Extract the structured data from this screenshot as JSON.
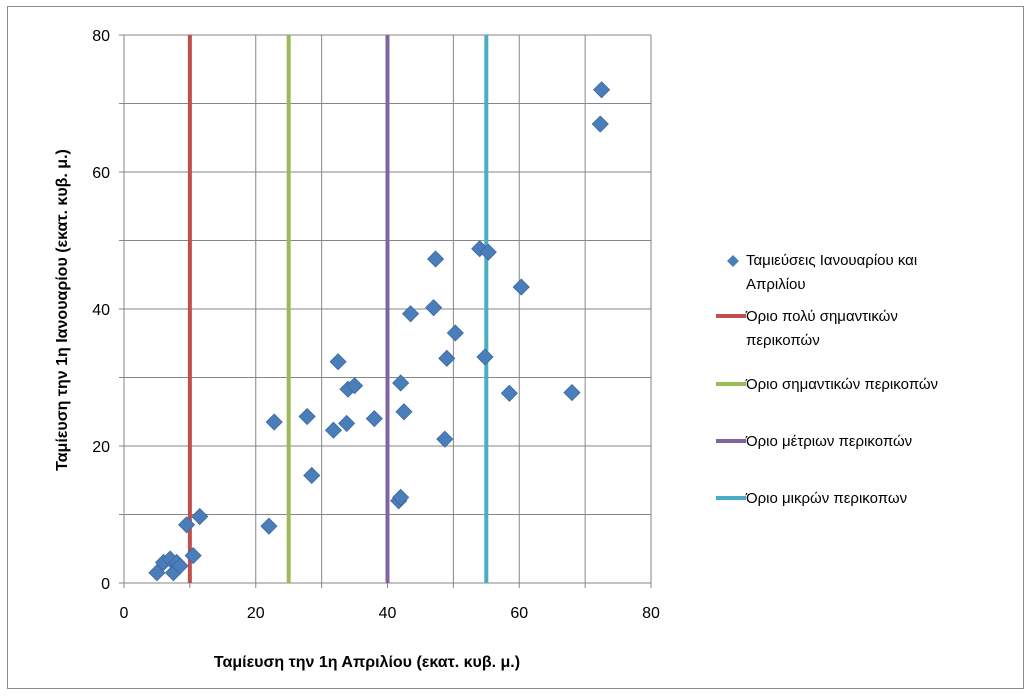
{
  "chart_data": {
    "type": "scatter",
    "title": "",
    "xlabel": "Ταμίευση την 1η Απριλίου (εκατ. κυβ. μ.)",
    "ylabel": "Ταμίευση την 1η Ιανουαρίου (εκατ. κυβ. μ.)",
    "xlim": [
      0,
      80
    ],
    "ylim": [
      0,
      80
    ],
    "xticks": [
      "0",
      "20",
      "40",
      "60",
      "80"
    ],
    "yticks": [
      "0",
      "20",
      "40",
      "60",
      "80"
    ],
    "grid": true,
    "legend_position": "right",
    "series": [
      {
        "name": "Ταμιεύσεις Ιανουαρίου και Απριλίου",
        "type": "scatter",
        "marker": "diamond",
        "color": "#4a7ebb",
        "points": [
          [
            5.0,
            1.5
          ],
          [
            6.0,
            3.0
          ],
          [
            7.0,
            3.5
          ],
          [
            7.5,
            1.5
          ],
          [
            8.0,
            3.0
          ],
          [
            8.5,
            2.5
          ],
          [
            9.5,
            8.5
          ],
          [
            10.5,
            4.0
          ],
          [
            11.5,
            9.7
          ],
          [
            22.0,
            8.3
          ],
          [
            22.8,
            23.5
          ],
          [
            27.8,
            24.3
          ],
          [
            28.5,
            15.7
          ],
          [
            31.8,
            22.3
          ],
          [
            32.5,
            32.3
          ],
          [
            33.8,
            23.3
          ],
          [
            34.0,
            28.3
          ],
          [
            35.0,
            28.8
          ],
          [
            38.0,
            24.0
          ],
          [
            41.7,
            12.0
          ],
          [
            42.0,
            12.5
          ],
          [
            42.0,
            29.2
          ],
          [
            42.5,
            25.0
          ],
          [
            43.5,
            39.3
          ],
          [
            47.0,
            40.2
          ],
          [
            47.3,
            47.3
          ],
          [
            48.7,
            21.0
          ],
          [
            49.0,
            32.8
          ],
          [
            50.3,
            36.5
          ],
          [
            54.0,
            48.8
          ],
          [
            54.8,
            33.0
          ],
          [
            55.3,
            48.3
          ],
          [
            58.5,
            27.7
          ],
          [
            60.3,
            43.2
          ],
          [
            68.0,
            27.8
          ],
          [
            72.3,
            67.0
          ],
          [
            72.5,
            72.0
          ]
        ]
      },
      {
        "name": "Όριο πολύ σημαντικών περικοπών",
        "type": "vline",
        "x": 10,
        "color": "#c0504d"
      },
      {
        "name": "Όριο σημαντικών περικοπών",
        "type": "vline",
        "x": 25,
        "color": "#9bbb59"
      },
      {
        "name": "Όριο μέτριων περικοπών",
        "type": "vline",
        "x": 40,
        "color": "#8064a2"
      },
      {
        "name": "Όριο μικρών περικοπων",
        "type": "vline",
        "x": 55,
        "color": "#4bacc6"
      }
    ],
    "legend": [
      {
        "lines": [
          "Ταμιεύσεις Ιανουαρίου και",
          "Απριλίου"
        ],
        "symbol": "diamond",
        "color": "#4a7ebb"
      },
      {
        "lines": [
          "Όριο πολύ σημαντικών",
          "περικοπών"
        ],
        "symbol": "line",
        "color": "#c0504d"
      },
      {
        "lines": [
          "Όριο σημαντικών περικοπών"
        ],
        "symbol": "line",
        "color": "#9bbb59"
      },
      {
        "lines": [
          "Όριο μέτριων περικοπών"
        ],
        "symbol": "line",
        "color": "#8064a2"
      },
      {
        "lines": [
          "Όριο μικρών περικοπων"
        ],
        "symbol": "line",
        "color": "#4bacc6"
      }
    ]
  }
}
